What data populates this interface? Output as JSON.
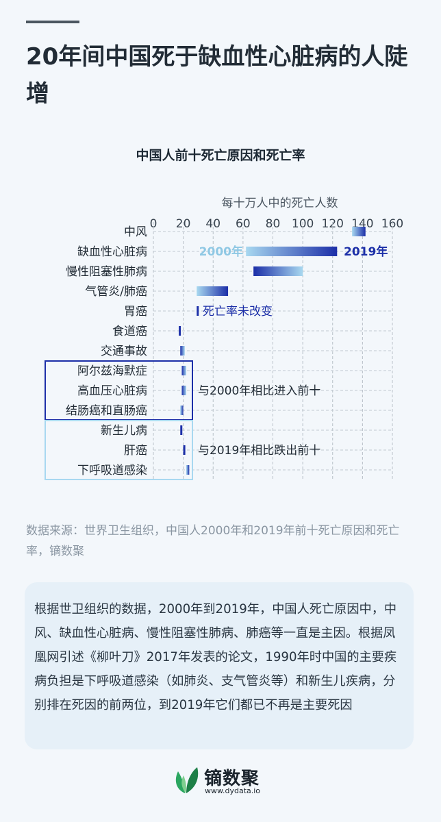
{
  "header": {
    "title": "20年间中国死于缺血性心脏病的人陡增"
  },
  "chart_data": {
    "type": "range-bar",
    "title": "中国人前十死亡原因和死亡率",
    "xlabel": "每十万人中的死亡人数",
    "xlim": [
      0,
      160
    ],
    "xticks": [
      0,
      20,
      40,
      60,
      80,
      100,
      120,
      140,
      160
    ],
    "grid": true,
    "categories": [
      "中风",
      "缺血性心脏病",
      "慢性阻塞性肺病",
      "气管炎/肺癌",
      "胃癌",
      "食道癌",
      "交通事故",
      "阿尔兹海默症",
      "高血压心脏病",
      "结肠癌和直肠癌",
      "新生儿病",
      "肝癌",
      "下呼吸道感染"
    ],
    "series": [
      {
        "name": "2000年",
        "values": [
          133,
          62,
          100,
          29,
          30,
          17,
          21,
          22,
          22,
          18,
          19,
          21,
          22
        ]
      },
      {
        "name": "2019年",
        "values": [
          142,
          123,
          67,
          50,
          29,
          17,
          18,
          19,
          19,
          20,
          18,
          20,
          24
        ]
      }
    ],
    "colors": {
      "2000": "#a8d8f0",
      "2019": "#1c2fa8"
    },
    "annotations": {
      "series_2000": "2000年",
      "series_2019": "2019年",
      "unchanged": "死亡率未改变",
      "entered": "与2000年相比进入前十",
      "dropped": "与2019年相比跌出前十"
    },
    "groups": {
      "entered": {
        "rows": [
          7,
          8,
          9
        ],
        "color": "#1c2fa8"
      },
      "dropped": {
        "rows": [
          10,
          11,
          12
        ],
        "color": "#a8d8f0"
      }
    }
  },
  "source": "数据来源：世界卫生组织，中国人2000年和2019年前十死亡原因和死亡率，镝数聚",
  "card": {
    "text": "根据世卫组织的数据，2000年到2019年，中国人死亡原因中，中风、缺血性心脏病、慢性阻塞性肺病、肺癌等一直是主因。根据凤凰网引述《柳叶刀》2017年发表的论文，1990年时中国的主要疾病负担是下呼吸道感染（如肺炎、支气管炎等）和新生儿疾病，分别排在死因的前两位，到2019年它们都已不再是主要死因"
  },
  "logo": {
    "name": "镝数聚",
    "url": "www.dydata.io"
  }
}
